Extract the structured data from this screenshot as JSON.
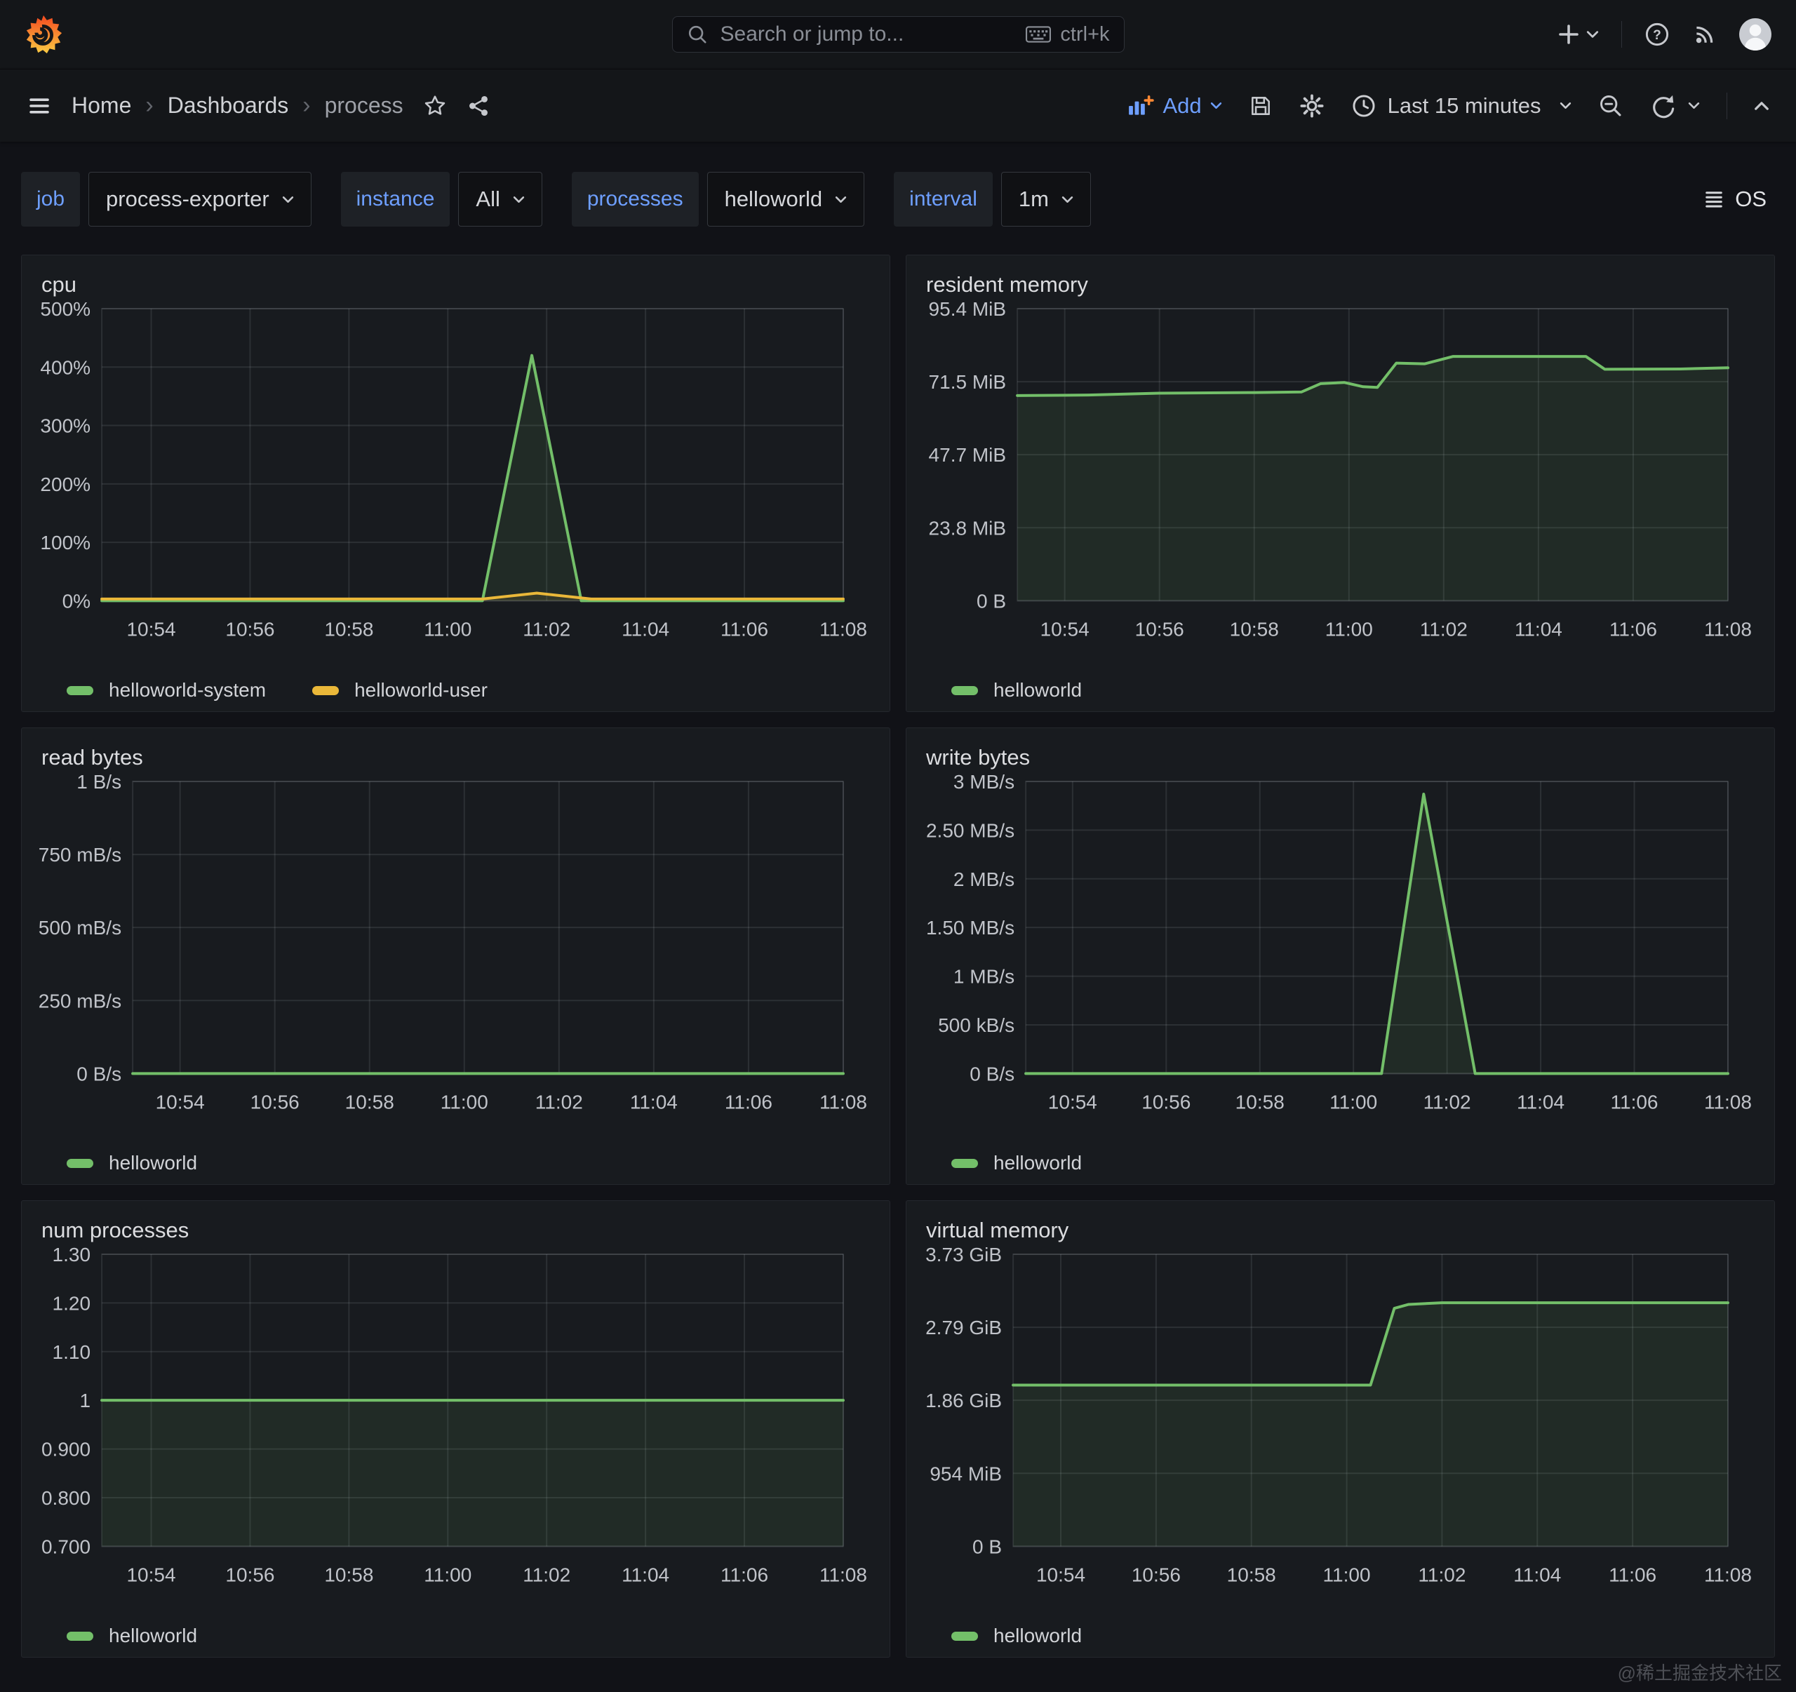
{
  "topbar": {
    "search_placeholder": "Search or jump to...",
    "search_shortcut": "ctrl+k"
  },
  "toolbar": {
    "breadcrumb_home": "Home",
    "breadcrumb_dashboards": "Dashboards",
    "breadcrumb_page": "process",
    "add_label": "Add",
    "time_range_label": "Last 15 minutes"
  },
  "variables": [
    {
      "label": "job",
      "value": "process-exporter"
    },
    {
      "label": "instance",
      "value": "All"
    },
    {
      "label": "processes",
      "value": "helloworld"
    },
    {
      "label": "interval",
      "value": "1m"
    }
  ],
  "submenu": {
    "os_label": "OS"
  },
  "watermark": "@稀土掘金技术社区",
  "colors": {
    "green": "#73BF69",
    "yellow": "#EAB839",
    "accent_blue": "#6E9FFF",
    "panel_bg": "#181B1F",
    "page_bg": "#111217"
  },
  "chart_data": [
    {
      "type": "area",
      "title": "cpu",
      "gutter": 92,
      "ylim": [
        0,
        500
      ],
      "xlim_minutes": [
        0,
        15
      ],
      "x_start_time": "10:53",
      "grid": true,
      "legend_position": "bottom",
      "y_ticks": [
        {
          "label": "500%",
          "value": 500
        },
        {
          "label": "400%",
          "value": 400
        },
        {
          "label": "300%",
          "value": 300
        },
        {
          "label": "200%",
          "value": 200
        },
        {
          "label": "100%",
          "value": 100
        },
        {
          "label": "0%",
          "value": 0
        }
      ],
      "x_ticks": [
        {
          "label": "10:54",
          "minute": 1
        },
        {
          "label": "10:56",
          "minute": 3
        },
        {
          "label": "10:58",
          "minute": 5
        },
        {
          "label": "11:00",
          "minute": 7
        },
        {
          "label": "11:02",
          "minute": 9
        },
        {
          "label": "11:04",
          "minute": 11
        },
        {
          "label": "11:06",
          "minute": 13
        },
        {
          "label": "11:08",
          "minute": 15
        }
      ],
      "series": [
        {
          "name": "helloworld-system",
          "color": "#73BF69",
          "fill_opacity": 0.1,
          "points": [
            [
              0,
              0
            ],
            [
              7.7,
              0
            ],
            [
              8.7,
              420
            ],
            [
              9.7,
              0
            ],
            [
              15,
              0
            ]
          ]
        },
        {
          "name": "helloworld-user",
          "color": "#EAB839",
          "fill_opacity": 0.1,
          "points": [
            [
              0,
              3
            ],
            [
              7.7,
              3
            ],
            [
              8.8,
              13
            ],
            [
              9.9,
              3
            ],
            [
              15,
              3
            ]
          ]
        }
      ]
    },
    {
      "type": "area",
      "title": "resident memory",
      "gutter": 136,
      "ylim": [
        0,
        95.4
      ],
      "xlim_minutes": [
        0,
        15
      ],
      "x_start_time": "10:53",
      "grid": true,
      "legend_position": "bottom",
      "y_ticks": [
        {
          "label": "95.4 MiB",
          "value": 95.4
        },
        {
          "label": "71.5 MiB",
          "value": 71.55
        },
        {
          "label": "47.7 MiB",
          "value": 47.7
        },
        {
          "label": "23.8 MiB",
          "value": 23.85
        },
        {
          "label": "0 B",
          "value": 0
        }
      ],
      "x_ticks": [
        {
          "label": "10:54",
          "minute": 1
        },
        {
          "label": "10:56",
          "minute": 3
        },
        {
          "label": "10:58",
          "minute": 5
        },
        {
          "label": "11:00",
          "minute": 7
        },
        {
          "label": "11:02",
          "minute": 9
        },
        {
          "label": "11:04",
          "minute": 11
        },
        {
          "label": "11:06",
          "minute": 13
        },
        {
          "label": "11:08",
          "minute": 15
        }
      ],
      "series": [
        {
          "name": "helloworld",
          "color": "#73BF69",
          "fill_opacity": 0.1,
          "points": [
            [
              0,
              67
            ],
            [
              1.5,
              67.2
            ],
            [
              3,
              67.8
            ],
            [
              5,
              68
            ],
            [
              6,
              68.2
            ],
            [
              6.4,
              70.9
            ],
            [
              6.9,
              71.3
            ],
            [
              7.3,
              69.9
            ],
            [
              7.6,
              69.7
            ],
            [
              8,
              77.6
            ],
            [
              8.6,
              77.4
            ],
            [
              9.2,
              79.8
            ],
            [
              12,
              79.8
            ],
            [
              12.4,
              75.6
            ],
            [
              14,
              75.7
            ],
            [
              15,
              76.1
            ]
          ]
        }
      ]
    },
    {
      "type": "area",
      "title": "read bytes",
      "gutter": 136,
      "ylim": [
        0,
        1
      ],
      "xlim_minutes": [
        0,
        15
      ],
      "x_start_time": "10:53",
      "grid": true,
      "legend_position": "bottom",
      "y_ticks": [
        {
          "label": "1 B/s",
          "value": 1
        },
        {
          "label": "750 mB/s",
          "value": 0.75
        },
        {
          "label": "500 mB/s",
          "value": 0.5
        },
        {
          "label": "250 mB/s",
          "value": 0.25
        },
        {
          "label": "0 B/s",
          "value": 0
        }
      ],
      "x_ticks": [
        {
          "label": "10:54",
          "minute": 1
        },
        {
          "label": "10:56",
          "minute": 3
        },
        {
          "label": "10:58",
          "minute": 5
        },
        {
          "label": "11:00",
          "minute": 7
        },
        {
          "label": "11:02",
          "minute": 9
        },
        {
          "label": "11:04",
          "minute": 11
        },
        {
          "label": "11:06",
          "minute": 13
        },
        {
          "label": "11:08",
          "minute": 15
        }
      ],
      "series": [
        {
          "name": "helloworld",
          "color": "#73BF69",
          "fill_opacity": 0.1,
          "points": [
            [
              0,
              0
            ],
            [
              15,
              0
            ]
          ]
        }
      ]
    },
    {
      "type": "area",
      "title": "write bytes",
      "gutter": 148,
      "ylim": [
        0,
        3
      ],
      "xlim_minutes": [
        0,
        15
      ],
      "x_start_time": "10:53",
      "grid": true,
      "legend_position": "bottom",
      "y_ticks": [
        {
          "label": "3 MB/s",
          "value": 3
        },
        {
          "label": "2.50 MB/s",
          "value": 2.5
        },
        {
          "label": "2 MB/s",
          "value": 2
        },
        {
          "label": "1.50 MB/s",
          "value": 1.5
        },
        {
          "label": "1 MB/s",
          "value": 1
        },
        {
          "label": "500 kB/s",
          "value": 0.5
        },
        {
          "label": "0 B/s",
          "value": 0
        }
      ],
      "x_ticks": [
        {
          "label": "10:54",
          "minute": 1
        },
        {
          "label": "10:56",
          "minute": 3
        },
        {
          "label": "10:58",
          "minute": 5
        },
        {
          "label": "11:00",
          "minute": 7
        },
        {
          "label": "11:02",
          "minute": 9
        },
        {
          "label": "11:04",
          "minute": 11
        },
        {
          "label": "11:06",
          "minute": 13
        },
        {
          "label": "11:08",
          "minute": 15
        }
      ],
      "series": [
        {
          "name": "helloworld",
          "color": "#73BF69",
          "fill_opacity": 0.1,
          "points": [
            [
              0,
              0
            ],
            [
              7.6,
              0
            ],
            [
              8.5,
              2.87
            ],
            [
              9.6,
              0
            ],
            [
              15,
              0
            ]
          ]
        }
      ]
    },
    {
      "type": "area",
      "title": "num processes",
      "gutter": 92,
      "ylim": [
        0.7,
        1.3
      ],
      "xlim_minutes": [
        0,
        15
      ],
      "x_start_time": "10:53",
      "grid": true,
      "legend_position": "bottom",
      "y_ticks": [
        {
          "label": "1.30",
          "value": 1.3
        },
        {
          "label": "1.20",
          "value": 1.2
        },
        {
          "label": "1.10",
          "value": 1.1
        },
        {
          "label": "1",
          "value": 1
        },
        {
          "label": "0.900",
          "value": 0.9
        },
        {
          "label": "0.800",
          "value": 0.8
        },
        {
          "label": "0.700",
          "value": 0.7
        }
      ],
      "x_ticks": [
        {
          "label": "10:54",
          "minute": 1
        },
        {
          "label": "10:56",
          "minute": 3
        },
        {
          "label": "10:58",
          "minute": 5
        },
        {
          "label": "11:00",
          "minute": 7
        },
        {
          "label": "11:02",
          "minute": 9
        },
        {
          "label": "11:04",
          "minute": 11
        },
        {
          "label": "11:06",
          "minute": 13
        },
        {
          "label": "11:08",
          "minute": 15
        }
      ],
      "series": [
        {
          "name": "helloworld",
          "color": "#73BF69",
          "fill_opacity": 0.1,
          "points": [
            [
              0,
              1
            ],
            [
              15,
              1
            ]
          ]
        }
      ]
    },
    {
      "type": "area",
      "title": "virtual memory",
      "gutter": 130,
      "ylim": [
        0,
        3.73
      ],
      "xlim_minutes": [
        0,
        15
      ],
      "x_start_time": "10:53",
      "grid": true,
      "legend_position": "bottom",
      "y_ticks": [
        {
          "label": "3.73 GiB",
          "value": 3.73
        },
        {
          "label": "2.79 GiB",
          "value": 2.7975
        },
        {
          "label": "1.86 GiB",
          "value": 1.865
        },
        {
          "label": "954 MiB",
          "value": 0.9325
        },
        {
          "label": "0 B",
          "value": 0
        }
      ],
      "x_ticks": [
        {
          "label": "10:54",
          "minute": 1
        },
        {
          "label": "10:56",
          "minute": 3
        },
        {
          "label": "10:58",
          "minute": 5
        },
        {
          "label": "11:00",
          "minute": 7
        },
        {
          "label": "11:02",
          "minute": 9
        },
        {
          "label": "11:04",
          "minute": 11
        },
        {
          "label": "11:06",
          "minute": 13
        },
        {
          "label": "11:08",
          "minute": 15
        }
      ],
      "series": [
        {
          "name": "helloworld",
          "color": "#73BF69",
          "fill_opacity": 0.1,
          "points": [
            [
              0,
              2.06
            ],
            [
              7.5,
              2.06
            ],
            [
              8,
              3.04
            ],
            [
              8.3,
              3.09
            ],
            [
              9,
              3.11
            ],
            [
              15,
              3.11
            ]
          ]
        }
      ]
    }
  ]
}
